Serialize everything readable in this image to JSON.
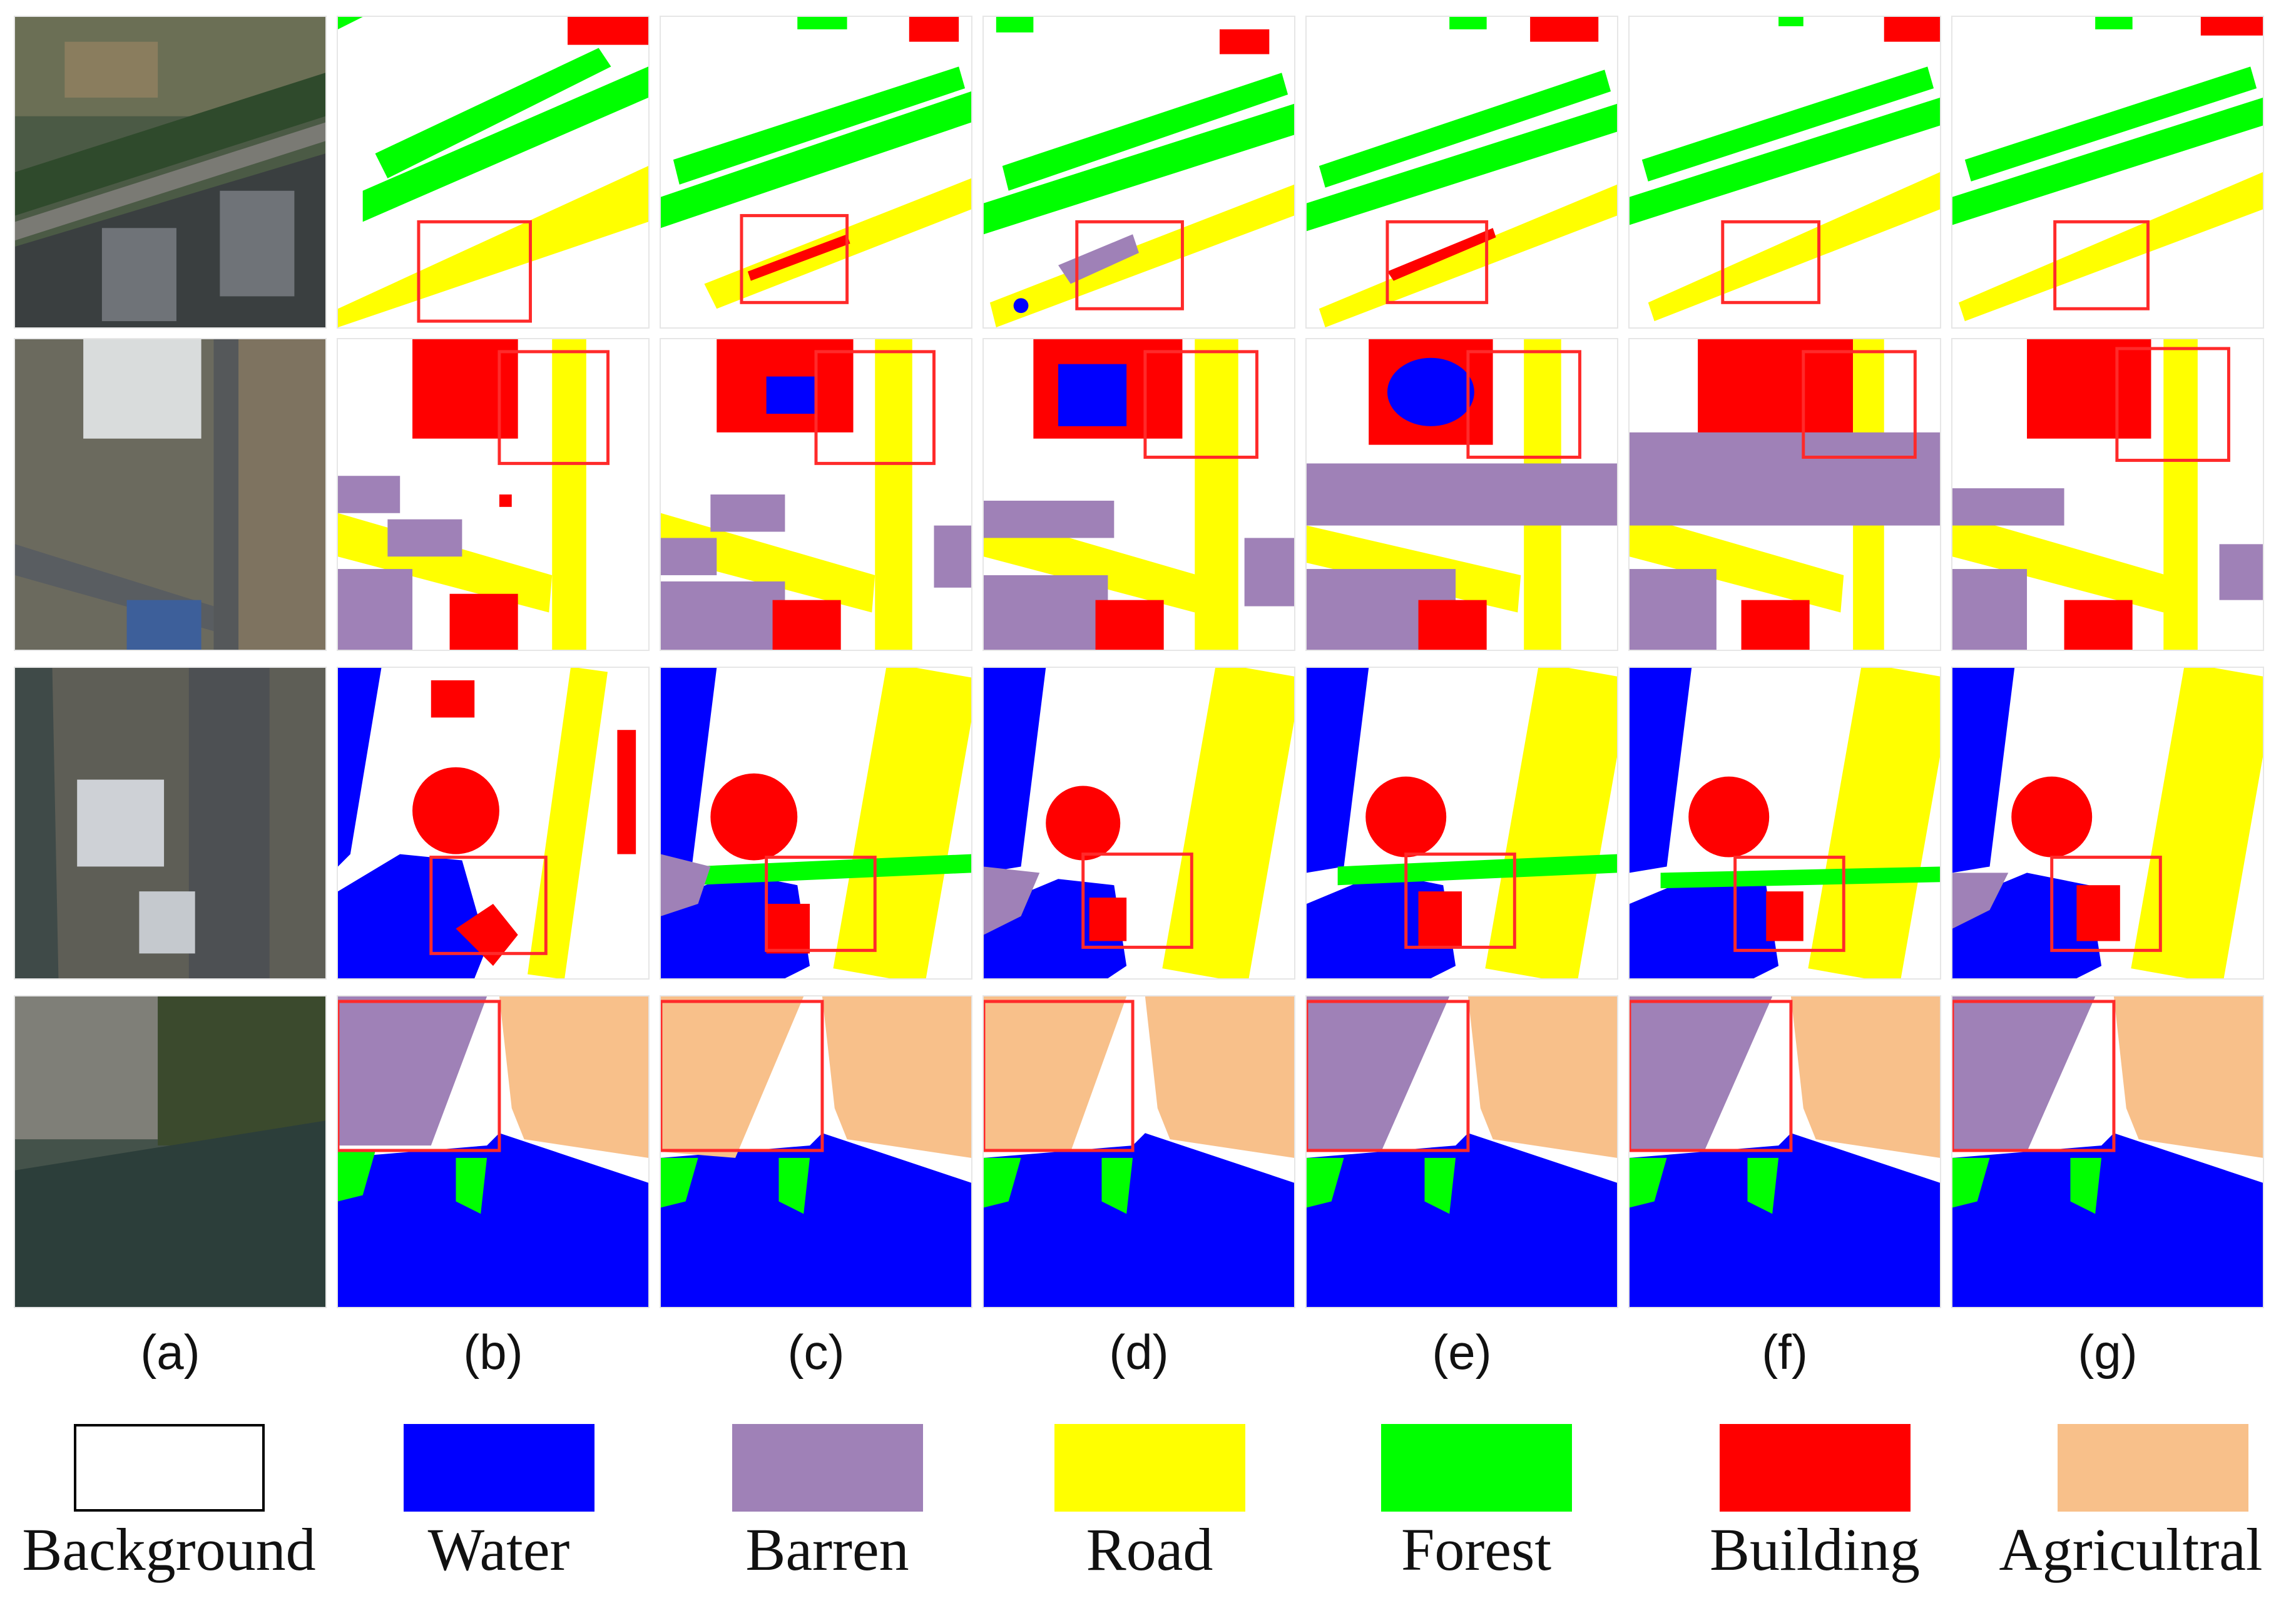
{
  "figure": {
    "columns": [
      {
        "id": "a",
        "caption": "(a)",
        "kind": "aerial image"
      },
      {
        "id": "b",
        "caption": "(b)",
        "kind": "ground truth"
      },
      {
        "id": "c",
        "caption": "(c)",
        "kind": "prediction"
      },
      {
        "id": "d",
        "caption": "(d)",
        "kind": "prediction"
      },
      {
        "id": "e",
        "caption": "(e)",
        "kind": "prediction"
      },
      {
        "id": "f",
        "caption": "(f)",
        "kind": "prediction"
      },
      {
        "id": "g",
        "caption": "(g)",
        "kind": "prediction"
      }
    ],
    "legend": [
      {
        "label": "Background",
        "color": "#ffffff"
      },
      {
        "label": "Water",
        "color": "#0000ff"
      },
      {
        "label": "Barren",
        "color": "#9f81b7"
      },
      {
        "label": "Road",
        "color": "#ffff00"
      },
      {
        "label": "Forest",
        "color": "#00ff00"
      },
      {
        "label": "Building",
        "color": "#ff0000"
      },
      {
        "label": "Agricultral",
        "color": "#f8c08a"
      }
    ],
    "highlight_color": "#ff2a2a"
  }
}
